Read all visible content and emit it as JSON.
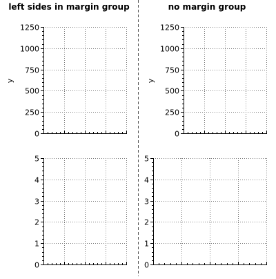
{
  "chart_data": [
    {
      "type": "line",
      "title": "left sides in margin group",
      "ylabel": "y",
      "xlabel": "",
      "ylim": [
        0,
        1250
      ],
      "yticks": [
        "0",
        "250",
        "500",
        "750",
        "1000",
        "1250"
      ],
      "yticks_values": [
        0,
        250,
        500,
        750,
        1000,
        1250
      ],
      "xlim": [
        0,
        5
      ],
      "x_tick_labels": [],
      "grid": true,
      "series": []
    },
    {
      "type": "line",
      "title": "no margin group",
      "ylabel": "y",
      "xlabel": "",
      "ylim": [
        0,
        1250
      ],
      "yticks": [
        "0",
        "250",
        "500",
        "750",
        "1000",
        "1250"
      ],
      "yticks_values": [
        0,
        250,
        500,
        750,
        1000,
        1250
      ],
      "xlim": [
        0,
        5
      ],
      "x_tick_labels": [],
      "grid": true,
      "series": []
    },
    {
      "type": "line",
      "title": "",
      "ylabel": "",
      "xlabel": "",
      "ylim": [
        0,
        5
      ],
      "yticks": [
        "0",
        "1",
        "2",
        "3",
        "4",
        "5"
      ],
      "yticks_values": [
        0,
        1,
        2,
        3,
        4,
        5
      ],
      "xlim": [
        0,
        5
      ],
      "x_tick_labels": [],
      "grid": true,
      "series": []
    },
    {
      "type": "line",
      "title": "",
      "ylabel": "",
      "xlabel": "",
      "ylim": [
        0,
        5
      ],
      "yticks": [
        "0",
        "1",
        "2",
        "3",
        "4",
        "5"
      ],
      "yticks_values": [
        0,
        1,
        2,
        3,
        4,
        5
      ],
      "xlim": [
        0,
        5
      ],
      "x_tick_labels": [],
      "grid": true,
      "series": []
    }
  ]
}
